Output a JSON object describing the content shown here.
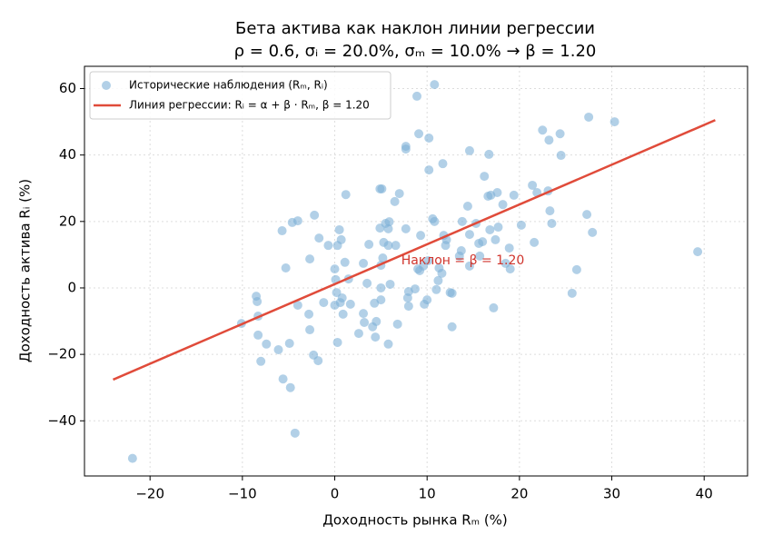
{
  "chart_data": {
    "type": "scatter",
    "title": "Бета актива как наклон линии регрессии",
    "subtitle": "ρ = 0.6, σᵢ = 20.0%, σₘ = 10.0% → β = 1.20",
    "x_label": "Доходность рынка Rₘ (%)",
    "y_label": "Доходность актива Rᵢ (%)",
    "annotation": {
      "text": "Наклон = β = 1.20",
      "x": 7.2,
      "y": 8.2,
      "color": "#d0342c"
    },
    "xlim": [
      -27.1,
      44.7
    ],
    "ylim": [
      -56.6,
      66.7
    ],
    "xticks": [
      {
        "value": -20,
        "label": "−20"
      },
      {
        "value": -10,
        "label": "−10"
      },
      0,
      10,
      20,
      30,
      40
    ],
    "yticks": [
      {
        "value": -40,
        "label": "−40"
      },
      {
        "value": -20,
        "label": "−20"
      },
      0,
      20,
      40,
      60
    ],
    "grid": true,
    "legend": "upper left",
    "series": [
      {
        "name": "Исторические наблюдения (Rₘ, Rᵢ)",
        "type": "scatter",
        "color": "#7fb2d8",
        "x": [
          -21.9,
          -4.3,
          -4.8,
          -5.6,
          -6.1,
          -7.4,
          -8,
          -8.3,
          -8.3,
          -8.4,
          -8.5,
          -10.1,
          -4.9,
          -2.3,
          -1.8,
          -2.7,
          -2.8,
          -4,
          -1.2,
          -2.7,
          -2.2,
          -1.7,
          -0.7,
          -5.3,
          -5.7,
          -4.6,
          -4,
          0.3,
          0.5,
          0.7,
          0,
          0.1,
          0.2,
          0,
          0.6,
          0.8,
          0.9,
          0.3,
          1.1,
          1.2,
          1.5,
          1.7,
          2.6,
          3.1,
          3.2,
          3.1,
          3.5,
          3.7,
          4.1,
          4.3,
          4.4,
          4.5,
          4.9,
          5.1,
          4.9,
          5,
          5,
          5,
          5.2,
          5.3,
          5.5,
          5.8,
          5.8,
          5.9,
          6,
          5.8,
          6.5,
          6.6,
          7,
          6.8,
          7.7,
          7.7,
          7.7,
          7.9,
          8,
          8,
          8.7,
          8.9,
          9,
          9.1,
          9.2,
          9.3,
          9.6,
          9.7,
          10.1,
          10,
          10.2,
          10.2,
          10.6,
          10.8,
          10.8,
          11,
          11.2,
          11.3,
          11.6,
          11.7,
          11.8,
          12.1,
          12,
          12.5,
          12.7,
          12.7,
          13.5,
          13.8,
          13.7,
          14.4,
          14.6,
          14.6,
          14.6,
          15.3,
          15.6,
          15.7,
          16,
          16.2,
          16.6,
          16.8,
          16.7,
          16.9,
          17.2,
          17.4,
          17.6,
          17.7,
          18.2,
          18.5,
          19,
          18.9,
          19.4,
          20.2,
          21.4,
          21.6,
          21.9,
          22.5,
          23.1,
          23.2,
          23.3,
          23.5,
          24.4,
          24.5,
          25.7,
          26.2,
          27.3,
          27.5,
          27.9,
          30.3,
          39.3
        ],
        "values": [
          -51.3,
          -43.7,
          -30,
          -27.4,
          -18.6,
          -16.9,
          -22.1,
          -14.2,
          -8.5,
          -4.1,
          -2.5,
          -10.7,
          -16.7,
          -20.2,
          -21.9,
          -12.6,
          -7.9,
          -5.2,
          -4.4,
          8.7,
          21.9,
          15,
          12.8,
          6,
          17.2,
          19.7,
          20.2,
          12.8,
          17.5,
          14.5,
          5.7,
          2.5,
          -1.4,
          -5.2,
          -4.4,
          -3,
          -7.9,
          -16.4,
          7.7,
          28.1,
          2.7,
          -4.9,
          -13.7,
          -7.7,
          -10.4,
          7.4,
          1.4,
          13.1,
          -11.7,
          -4.6,
          -14.8,
          -10.1,
          29.8,
          29.8,
          18,
          -3.6,
          0,
          6.8,
          9,
          13.7,
          19.4,
          17.8,
          12.8,
          19.9,
          1.1,
          -16.9,
          26,
          12.8,
          28.4,
          -10.9,
          42.6,
          41.8,
          17.8,
          -3,
          -5.5,
          -1.1,
          -0.3,
          57.7,
          5.7,
          46.4,
          5.2,
          15.8,
          6.6,
          -4.9,
          8.2,
          -3.6,
          35.5,
          45.1,
          20.8,
          61.2,
          20,
          -0.5,
          2.2,
          6,
          4.4,
          37.4,
          15.8,
          14.5,
          12.8,
          -1.4,
          -1.6,
          -11.7,
          9.6,
          20,
          11.2,
          24.6,
          16.1,
          41.3,
          6.6,
          19.4,
          13.4,
          9.6,
          13.9,
          33.6,
          27.6,
          17.5,
          40.2,
          27.9,
          -6,
          14.5,
          28.7,
          18.3,
          25.1,
          7.4,
          5.7,
          12,
          27.9,
          18.9,
          30.9,
          13.7,
          28.7,
          47.5,
          29.2,
          44.5,
          23.2,
          19.4,
          46.4,
          39.9,
          -1.6,
          5.5,
          22.1,
          51.4,
          16.7,
          50,
          10.9
        ]
      },
      {
        "name": "Линия регрессии: Rᵢ = α + β · Rₘ, β = 1.20",
        "type": "line",
        "color": "#e04b3a",
        "x": [
          -24,
          41.2
        ],
        "values": [
          -27.6,
          50.5
        ]
      }
    ]
  }
}
